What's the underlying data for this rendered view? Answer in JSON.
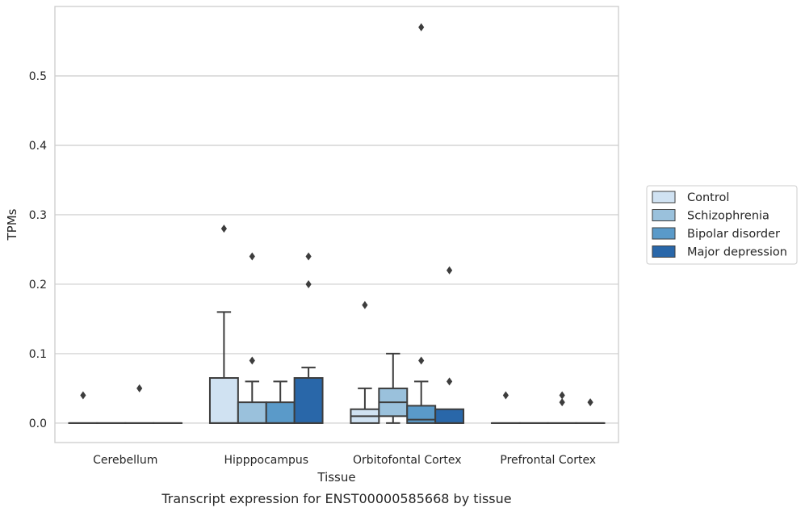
{
  "chart_data": {
    "type": "box",
    "xlabel": "Tissue",
    "ylabel": "TPMs",
    "caption": "Transcript expression for ENST00000585668 by tissue",
    "ylim": [
      -0.028,
      0.6
    ],
    "yticks": [
      0.0,
      0.1,
      0.2,
      0.3,
      0.4,
      0.5
    ],
    "ytick_labels": [
      "0.0",
      "0.1",
      "0.2",
      "0.3",
      "0.4",
      "0.5"
    ],
    "grid": "horizontal",
    "legend_position": "right",
    "categories": [
      "Cerebellum",
      "Hipppocampus",
      "Orbitofontal Cortex",
      "Prefrontal Cortex"
    ],
    "series": [
      {
        "name": "Control",
        "color": "#d0e2f2",
        "boxes": [
          {
            "min": 0,
            "q1": 0,
            "median": 0,
            "q3": 0,
            "max": 0,
            "outliers": [
              0.04
            ]
          },
          {
            "min": 0,
            "q1": 0,
            "median": 0,
            "q3": 0.065,
            "max": 0.16,
            "outliers": [
              0.28
            ]
          },
          {
            "min": 0,
            "q1": 0,
            "median": 0.01,
            "q3": 0.02,
            "max": 0.05,
            "outliers": [
              0.17
            ]
          },
          {
            "min": 0,
            "q1": 0,
            "median": 0,
            "q3": 0,
            "max": 0,
            "outliers": [
              0.04
            ]
          }
        ]
      },
      {
        "name": "Schizophrenia",
        "color": "#9ac1dc",
        "boxes": [
          {
            "min": 0,
            "q1": 0,
            "median": 0,
            "q3": 0,
            "max": 0,
            "outliers": []
          },
          {
            "min": 0,
            "q1": 0,
            "median": 0,
            "q3": 0.03,
            "max": 0.06,
            "outliers": [
              0.09,
              0.24
            ]
          },
          {
            "min": 0,
            "q1": 0.01,
            "median": 0.03,
            "q3": 0.05,
            "max": 0.1,
            "outliers": []
          },
          {
            "min": 0,
            "q1": 0,
            "median": 0,
            "q3": 0,
            "max": 0,
            "outliers": []
          }
        ]
      },
      {
        "name": "Bipolar disorder",
        "color": "#5a9ac9",
        "boxes": [
          {
            "min": 0,
            "q1": 0,
            "median": 0,
            "q3": 0,
            "max": 0,
            "outliers": [
              0.05
            ]
          },
          {
            "min": 0,
            "q1": 0,
            "median": 0,
            "q3": 0.03,
            "max": 0.06,
            "outliers": []
          },
          {
            "min": 0,
            "q1": 0,
            "median": 0.005,
            "q3": 0.025,
            "max": 0.06,
            "outliers": [
              0.09,
              0.57
            ]
          },
          {
            "min": 0,
            "q1": 0,
            "median": 0,
            "q3": 0,
            "max": 0,
            "outliers": [
              0.03,
              0.04
            ]
          }
        ]
      },
      {
        "name": "Major depression",
        "color": "#2967a9",
        "boxes": [
          {
            "min": 0,
            "q1": 0,
            "median": 0,
            "q3": 0,
            "max": 0,
            "outliers": []
          },
          {
            "min": 0,
            "q1": 0,
            "median": 0,
            "q3": 0.065,
            "max": 0.08,
            "outliers": [
              0.2,
              0.24
            ]
          },
          {
            "min": 0,
            "q1": 0,
            "median": 0,
            "q3": 0.02,
            "max": 0.02,
            "outliers": [
              0.06,
              0.22
            ]
          },
          {
            "min": 0,
            "q1": 0,
            "median": 0,
            "q3": 0,
            "max": 0,
            "outliers": [
              0.03
            ]
          }
        ]
      }
    ]
  }
}
